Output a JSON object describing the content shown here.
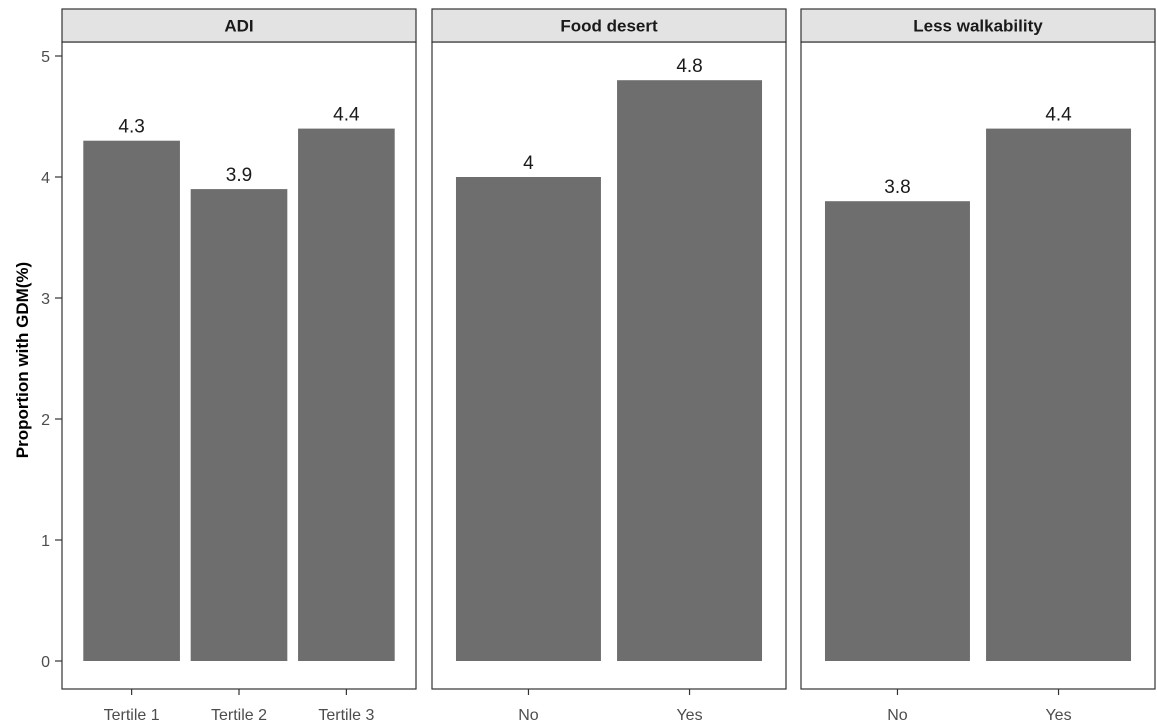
{
  "chart_data": {
    "type": "bar",
    "ylabel": "Proportion with GDM(%)",
    "ylim": [
      0,
      5
    ],
    "yticks": [
      0,
      1,
      2,
      3,
      4,
      5
    ],
    "grid": false,
    "bar_color": "#6e6e6e",
    "facets": [
      {
        "title": "ADI",
        "categories": [
          "Tertile 1",
          "Tertile 2",
          "Tertile 3"
        ],
        "values": [
          4.3,
          3.9,
          4.4
        ],
        "labels": [
          "4.3",
          "3.9",
          "4.4"
        ]
      },
      {
        "title": "Food desert",
        "categories": [
          "No",
          "Yes"
        ],
        "values": [
          4.0,
          4.8
        ],
        "labels": [
          "4",
          "4.8"
        ]
      },
      {
        "title": "Less walkability",
        "categories": [
          "No",
          "Yes"
        ],
        "values": [
          3.8,
          4.4
        ],
        "labels": [
          "3.8",
          "4.4"
        ]
      }
    ]
  }
}
